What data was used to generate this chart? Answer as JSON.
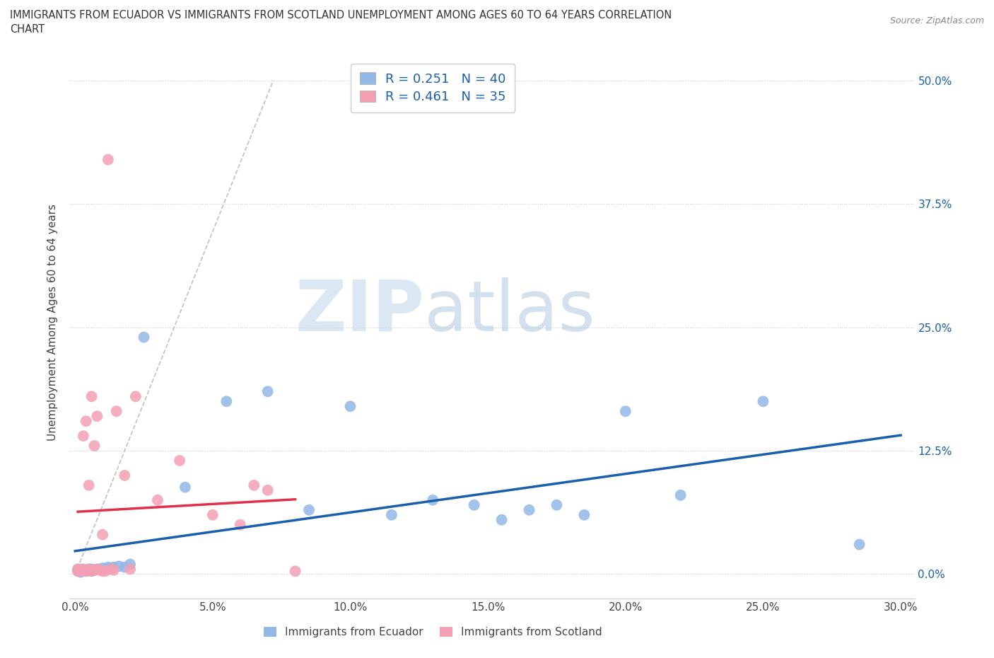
{
  "title_line1": "IMMIGRANTS FROM ECUADOR VS IMMIGRANTS FROM SCOTLAND UNEMPLOYMENT AMONG AGES 60 TO 64 YEARS CORRELATION",
  "title_line2": "CHART",
  "source_text": "Source: ZipAtlas.com",
  "ylabel": "Unemployment Among Ages 60 to 64 years",
  "ytick_labels": [
    "0.0%",
    "12.5%",
    "25.0%",
    "37.5%",
    "50.0%"
  ],
  "ytick_values": [
    0.0,
    0.125,
    0.25,
    0.375,
    0.5
  ],
  "xtick_values": [
    0.0,
    0.05,
    0.1,
    0.15,
    0.2,
    0.25,
    0.3
  ],
  "xlim": [
    -0.002,
    0.305
  ],
  "ylim": [
    -0.025,
    0.535
  ],
  "ecuador_color": "#93b8e8",
  "scotland_color": "#f4a0b4",
  "ecuador_line_color": "#1a5fad",
  "scotland_line_color": "#e0304a",
  "ecuador_R": 0.251,
  "ecuador_N": 40,
  "scotland_R": 0.461,
  "scotland_N": 35,
  "legend_label_ecuador": "Immigrants from Ecuador",
  "legend_label_scotland": "Immigrants from Scotland",
  "watermark_zip": "ZIP",
  "watermark_atlas": "atlas",
  "ecuador_x": [
    0.001,
    0.001,
    0.002,
    0.002,
    0.003,
    0.003,
    0.004,
    0.004,
    0.005,
    0.005,
    0.006,
    0.006,
    0.007,
    0.008,
    0.009,
    0.01,
    0.011,
    0.012,
    0.013,
    0.014,
    0.016,
    0.018,
    0.02,
    0.025,
    0.04,
    0.055,
    0.07,
    0.085,
    0.1,
    0.115,
    0.13,
    0.145,
    0.155,
    0.165,
    0.175,
    0.185,
    0.2,
    0.22,
    0.25,
    0.285
  ],
  "ecuador_y": [
    0.005,
    0.003,
    0.004,
    0.002,
    0.005,
    0.003,
    0.004,
    0.003,
    0.005,
    0.004,
    0.005,
    0.003,
    0.004,
    0.005,
    0.005,
    0.006,
    0.005,
    0.007,
    0.006,
    0.007,
    0.008,
    0.007,
    0.01,
    0.24,
    0.088,
    0.175,
    0.185,
    0.065,
    0.17,
    0.06,
    0.075,
    0.07,
    0.055,
    0.065,
    0.07,
    0.06,
    0.165,
    0.08,
    0.175,
    0.03
  ],
  "scotland_x": [
    0.001,
    0.001,
    0.002,
    0.002,
    0.003,
    0.003,
    0.004,
    0.004,
    0.005,
    0.005,
    0.005,
    0.006,
    0.006,
    0.007,
    0.007,
    0.008,
    0.008,
    0.009,
    0.01,
    0.01,
    0.011,
    0.012,
    0.013,
    0.014,
    0.015,
    0.018,
    0.02,
    0.022,
    0.03,
    0.038,
    0.05,
    0.06,
    0.065,
    0.07,
    0.08
  ],
  "scotland_y": [
    0.005,
    0.003,
    0.005,
    0.003,
    0.14,
    0.004,
    0.003,
    0.155,
    0.005,
    0.09,
    0.004,
    0.18,
    0.003,
    0.13,
    0.004,
    0.005,
    0.16,
    0.004,
    0.04,
    0.003,
    0.003,
    0.42,
    0.005,
    0.004,
    0.165,
    0.1,
    0.005,
    0.18,
    0.075,
    0.115,
    0.06,
    0.05,
    0.09,
    0.085,
    0.003
  ]
}
